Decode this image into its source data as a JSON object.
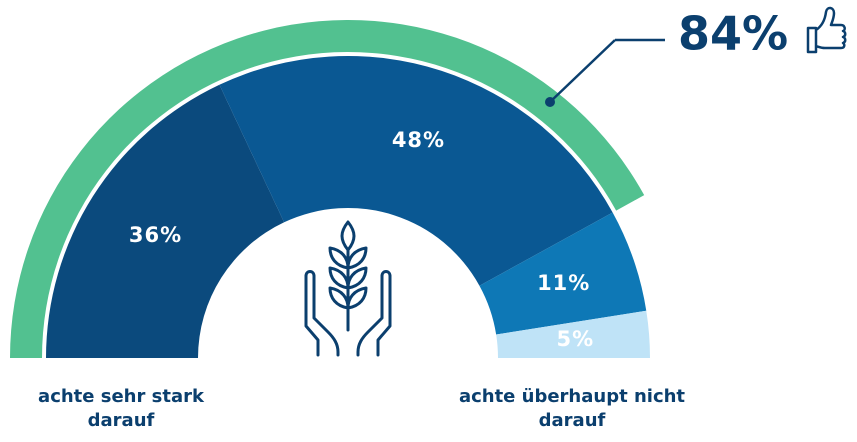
{
  "chart_data": {
    "type": "semi-donut",
    "categories": [
      "achte sehr stark darauf",
      null,
      null,
      "achte überhaupt nicht darauf"
    ],
    "values": [
      36,
      48,
      11,
      5
    ],
    "value_labels": [
      "36%",
      "48%",
      "11%",
      "5%"
    ],
    "colors": [
      "#0b4a7d",
      "#0a5893",
      "#0e78b6",
      "#bfe3f7"
    ],
    "highlight": {
      "value": 84,
      "label": "84%",
      "color": "#52c190"
    }
  }
}
